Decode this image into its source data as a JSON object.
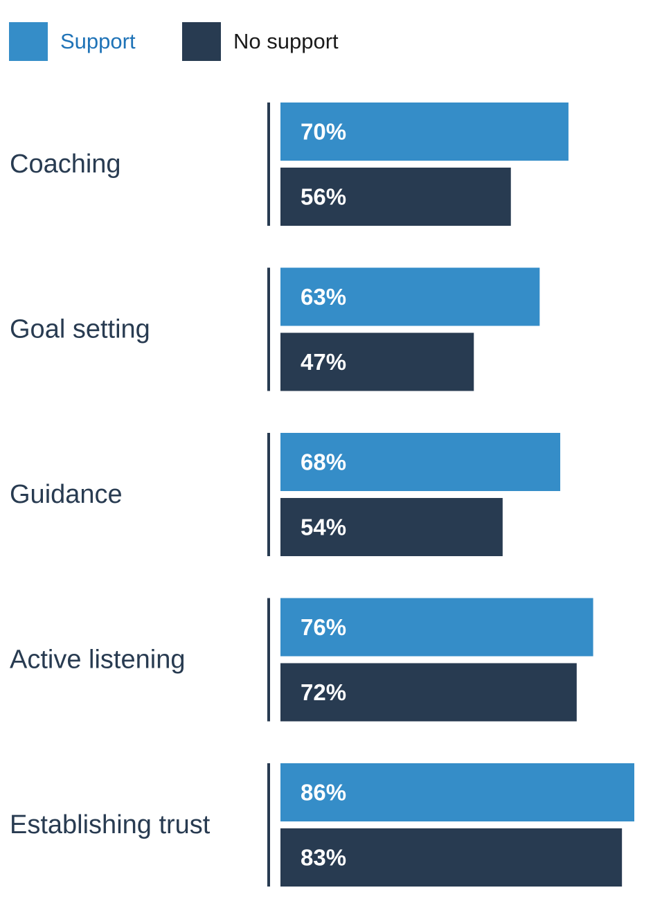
{
  "legend": {
    "items": [
      {
        "label": "Support",
        "color": "#358dc8",
        "text_color": "#1f73b7"
      },
      {
        "label": "No support",
        "color": "#283b51",
        "text_color": "#1a1a1a"
      }
    ]
  },
  "colors": {
    "axis": "#283b51",
    "category_text": "#283b51",
    "value_text": "#ffffff"
  },
  "chart_data": {
    "type": "bar",
    "orientation": "horizontal",
    "categories": [
      "Coaching",
      "Goal setting",
      "Guidance",
      "Active listening",
      "Establishing trust"
    ],
    "series": [
      {
        "name": "Support",
        "values": [
          70,
          63,
          68,
          76,
          86
        ],
        "labels": [
          "70%",
          "63%",
          "68%",
          "76%",
          "86%"
        ]
      },
      {
        "name": "No support",
        "values": [
          56,
          47,
          54,
          72,
          83
        ],
        "labels": [
          "56%",
          "47%",
          "54%",
          "72%",
          "83%"
        ]
      }
    ],
    "unit": "%",
    "xlim": [
      0,
      86
    ],
    "grid": false,
    "legend_position": "top-left"
  }
}
